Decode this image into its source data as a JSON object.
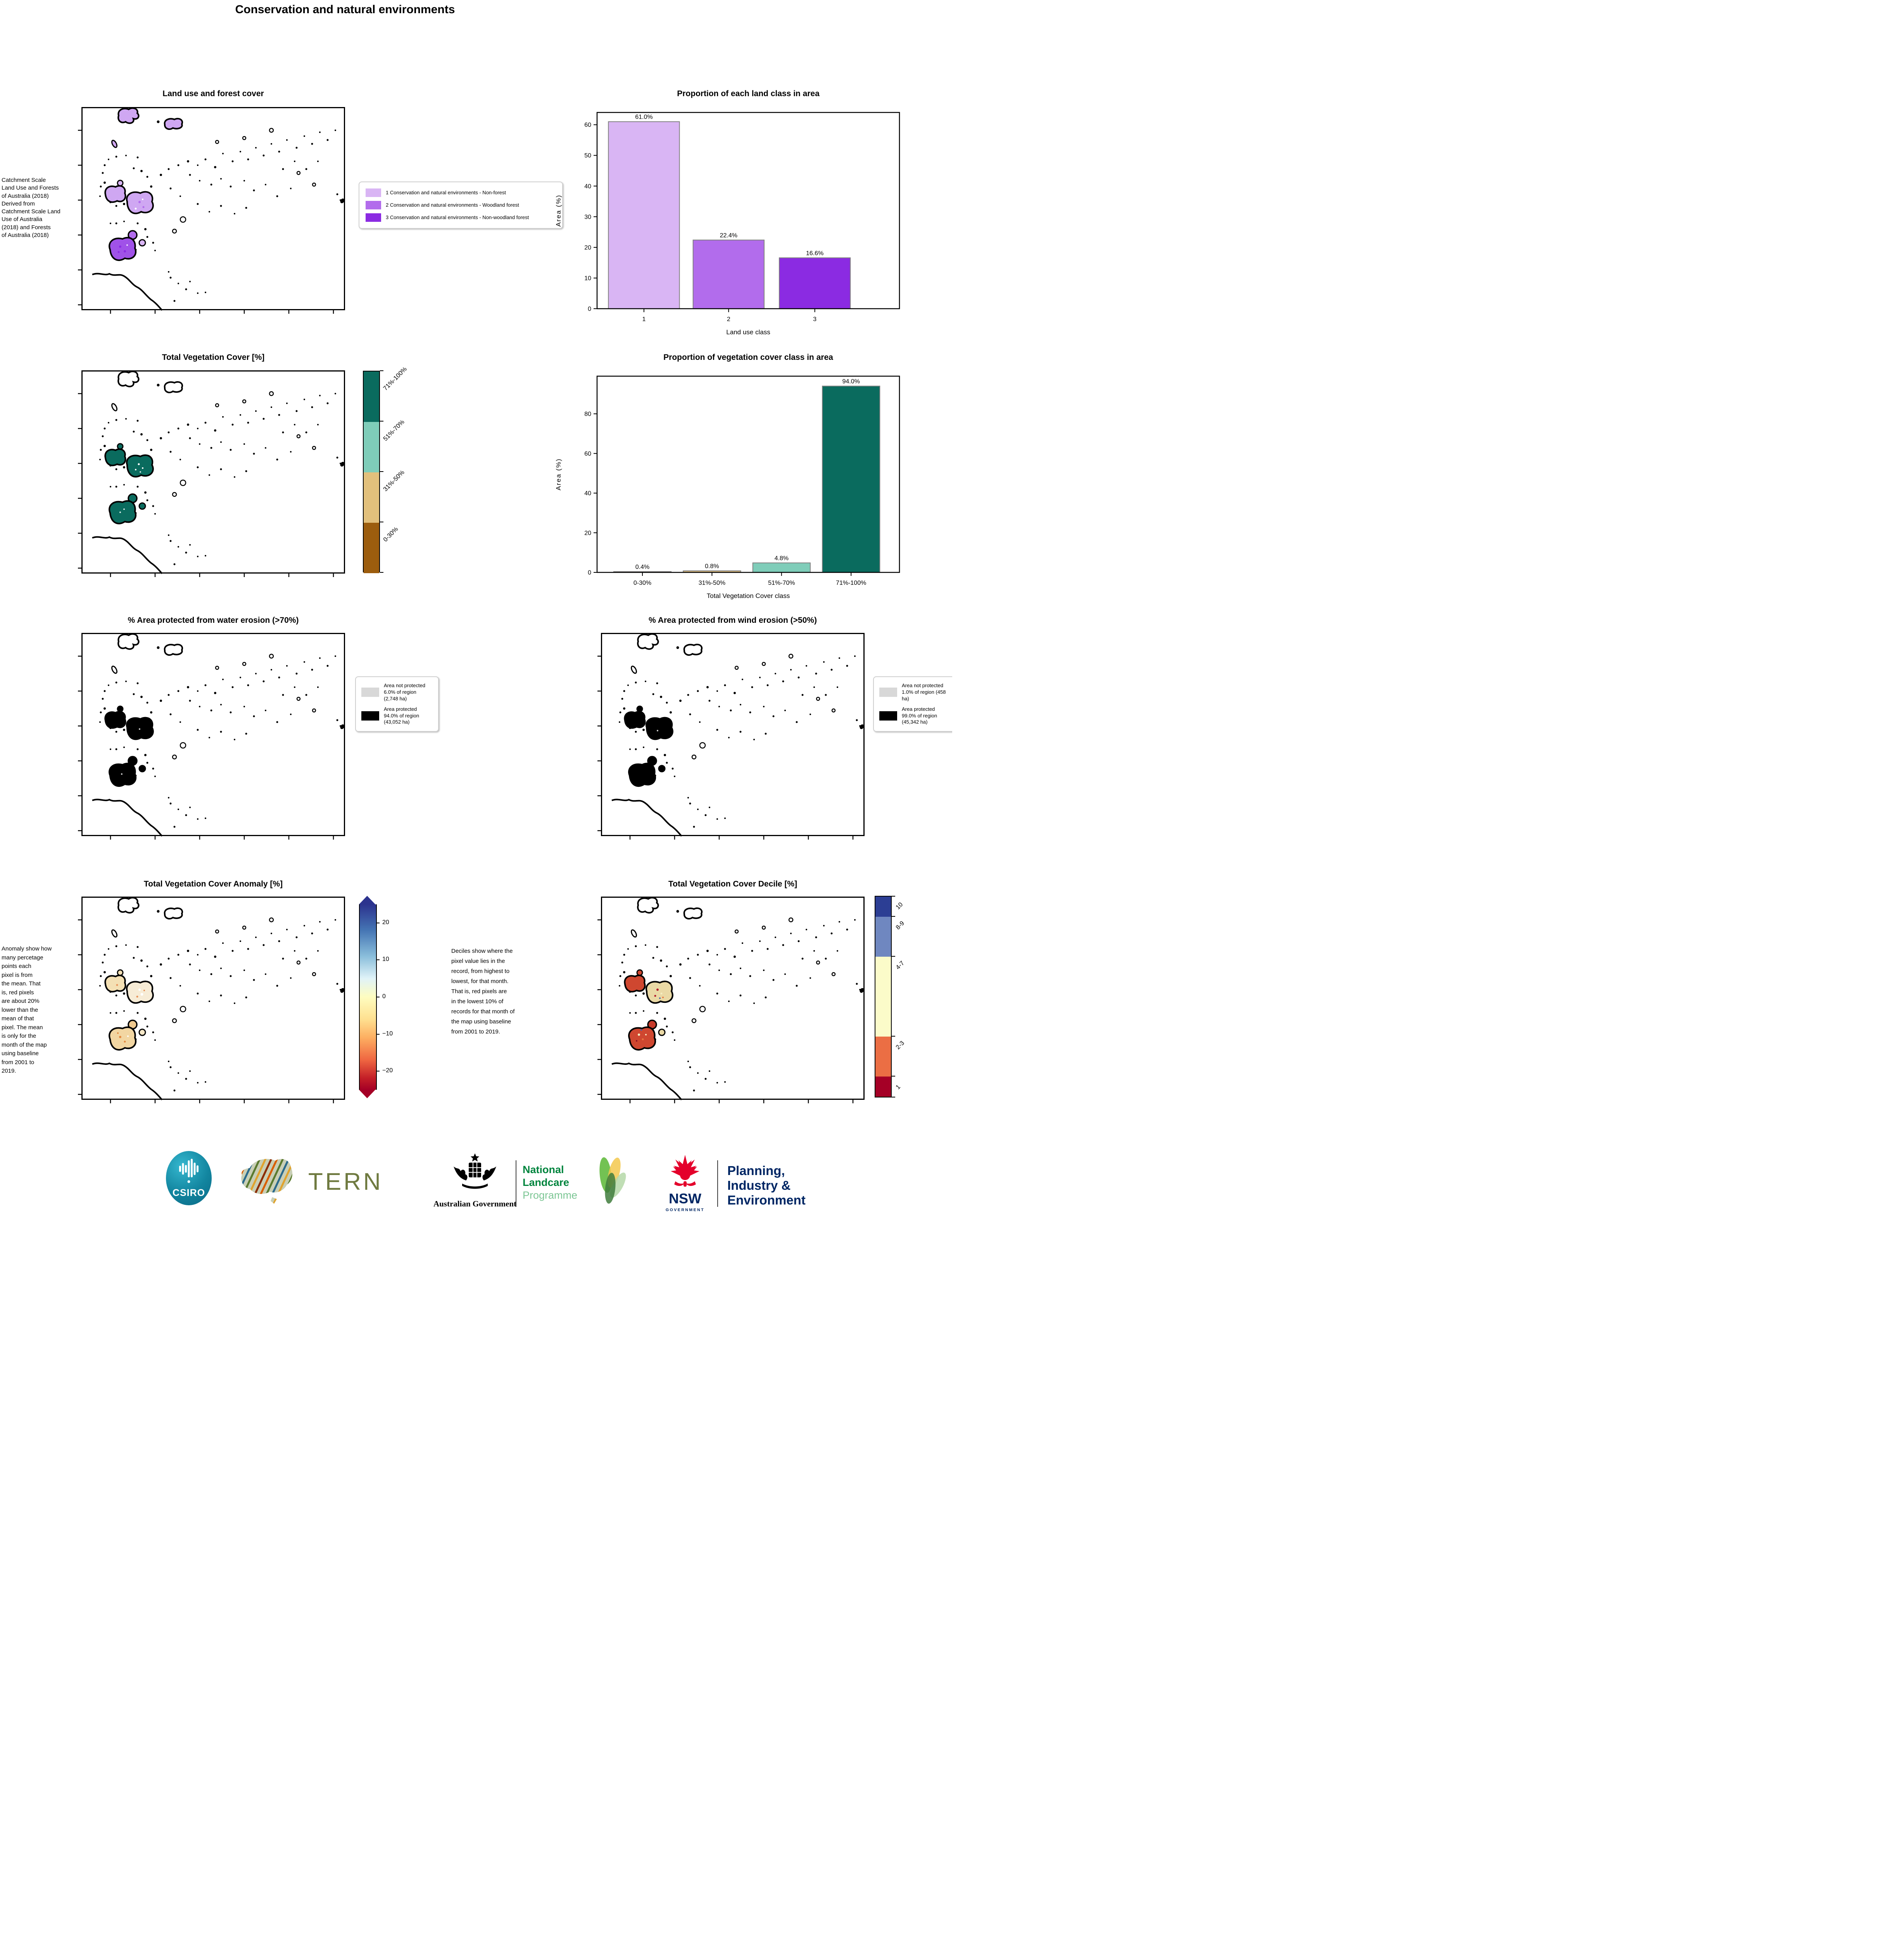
{
  "page_title": "Conservation and natural environments",
  "panels": {
    "land_use": {
      "title": "Land use and forest cover",
      "caption": " Catchment Scale\nLand Use and Forests\nof Australia (2018)\nDerived from\nCatchment Scale Land\nUse of Australia\n(2018) and Forests\nof Australia (2018)",
      "legend": [
        {
          "label": "1 Conservation and natural environments - Non-forest",
          "color": "#d9b5f4"
        },
        {
          "label": "2 Conservation and natural environments - Woodland forest",
          "color": "#b26cec"
        },
        {
          "label": "3 Conservation and natural environments - Non-woodland forest",
          "color": "#8b2be2"
        }
      ]
    },
    "veg_cover": {
      "title": "Total Vegetation Cover [%]",
      "colorbar": [
        {
          "label": "71%-100%",
          "color": "#0a6b5e"
        },
        {
          "label": "51%-70%",
          "color": "#7fcdb9"
        },
        {
          "label": "31%-50%",
          "color": "#e2c07c"
        },
        {
          "label": "0-30%",
          "color": "#9c5d0e"
        }
      ]
    },
    "water_erosion": {
      "title": "% Area protected from water erosion (>70%)",
      "legend": [
        {
          "label": "Area not protected 6.0% of region (2,748 ha)",
          "color": "#d8d8d8"
        },
        {
          "label": "Area protected 94.0% of region (43,052 ha)",
          "color": "#000000"
        }
      ]
    },
    "wind_erosion": {
      "title": "% Area protected from wind erosion (>50%)",
      "legend": [
        {
          "label": "Area not protected 1.0% of region (458 ha)",
          "color": "#d8d8d8"
        },
        {
          "label": "Area protected 99.0% of region (45,342 ha)",
          "color": "#000000"
        }
      ]
    },
    "anomaly": {
      "title": "Total Vegetation Cover Anomaly [%]",
      "caption": "Anomaly show how\nmany percetage\npoints each\npixel is from\nthe mean. That\nis, red pixels\nare about 20%\nlower than the\nmean of that\npixel. The mean\nis only for the\nmonth of the map\nusing baseline\nfrom 2001 to\n2019.",
      "colorbar_ticks": [
        {
          "label": "20",
          "value": 20
        },
        {
          "label": "10",
          "value": 10
        },
        {
          "label": "0",
          "value": 0
        },
        {
          "label": "−10",
          "value": -10
        },
        {
          "label": "−20",
          "value": -20
        }
      ],
      "colorbar_range": [
        -25,
        25
      ]
    },
    "decile": {
      "title": "Total Vegetation Cover Decile [%]",
      "caption": "Deciles show where the\npixel value lies in the\nrecord, from highest to\nlowest, for that month.\nThat is, red pixels are\nin the lowest 10% of\nrecords for that month of\nthe map using baseline\nfrom 2001 to 2019.",
      "colorbar": [
        {
          "label": "10",
          "color": "#2c3e94",
          "span": 1
        },
        {
          "label": "8-9",
          "color": "#6f87c0",
          "span": 2
        },
        {
          "label": "4-7",
          "color": "#fbfbc9",
          "span": 4
        },
        {
          "label": "2-3",
          "color": "#eb6e44",
          "span": 2
        },
        {
          "label": "1",
          "color": "#a50026",
          "span": 1
        }
      ]
    }
  },
  "chart_data": [
    {
      "type": "bar",
      "title": "Proportion of each land class in area",
      "categories": [
        "1",
        "2",
        "3"
      ],
      "values": [
        61.0,
        22.4,
        16.6
      ],
      "value_labels": [
        "61.0%",
        "22.4%",
        "16.6%"
      ],
      "bar_colors": [
        "#d9b5f4",
        "#b26cec",
        "#8b2be2"
      ],
      "bar_edge_color": "#808080",
      "xlabel": "Land use class",
      "ylabel": "Area (%)",
      "ylim": [
        0,
        64
      ],
      "yticks": [
        0,
        10,
        20,
        30,
        40,
        50,
        60
      ],
      "legend_position": "none",
      "grid": false
    },
    {
      "type": "bar",
      "title": "Proportion of vegetation cover class in area",
      "categories": [
        "0-30%",
        "31%-50%",
        "51%-70%",
        "71%-100%"
      ],
      "values": [
        0.4,
        0.8,
        4.8,
        94.0
      ],
      "value_labels": [
        "0.4%",
        "0.8%",
        "4.8%",
        "94.0%"
      ],
      "bar_colors": [
        "#9c5d0e",
        "#e2c07c",
        "#7fcdb9",
        "#0a6b5e"
      ],
      "bar_edge_color": "#808080",
      "xlabel": "Total Vegetation Cover class",
      "ylabel": "Area (%)",
      "ylim": [
        0,
        99
      ],
      "yticks": [
        0,
        20,
        40,
        60,
        80
      ],
      "legend_position": "none",
      "grid": false
    }
  ],
  "logos": {
    "csiro": "CSIRO",
    "tern": "TERN",
    "aus_gov": "Australian Government",
    "landcare": {
      "line1": "National",
      "line2": "Landcare",
      "line3": "Programme"
    },
    "nsw": {
      "name": "NSW",
      "sub": "GOVERNMENT"
    },
    "planning": {
      "line1": "Planning,",
      "line2": "Industry &",
      "line3": "Environment"
    }
  },
  "brand_colors": {
    "csiro_teal": "#12859f",
    "tern_olive": "#6f7a40",
    "landcare_green": "#00843d",
    "landcare_light_green": "#7cc694",
    "nsw_red": "#e4002b",
    "nsw_navy": "#002664"
  }
}
